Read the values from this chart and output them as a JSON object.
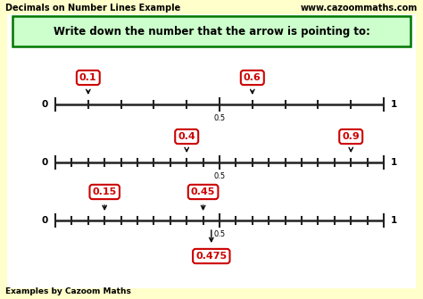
{
  "bg_color": "#ffffcc",
  "inner_bg": "#ffffff",
  "title_left": "Decimals on Number Lines Example",
  "title_right": "www.cazoommaths.com",
  "instruction": "Write down the number that the arrow is pointing to:",
  "footer": "Examples by Cazoom Maths",
  "number_lines": [
    {
      "n_ticks": 10,
      "arrows": [
        {
          "value": 0.1,
          "label": "0.1",
          "above": true
        },
        {
          "value": 0.6,
          "label": "0.6",
          "above": true
        }
      ]
    },
    {
      "n_ticks": 20,
      "arrows": [
        {
          "value": 0.4,
          "label": "0.4",
          "above": true
        },
        {
          "value": 0.9,
          "label": "0.9",
          "above": true
        }
      ]
    },
    {
      "n_ticks": 20,
      "arrows": [
        {
          "value": 0.15,
          "label": "0.15",
          "above": true
        },
        {
          "value": 0.45,
          "label": "0.45",
          "above": true
        },
        {
          "value": 0.475,
          "label": "0.475",
          "above": false
        }
      ]
    }
  ],
  "instruction_box_color": "#ccffcc",
  "instruction_box_edge": "#007700",
  "label_box_color": "white",
  "label_box_edge": "#cc0000",
  "label_text_color": "#cc0000",
  "axis_color": "#222222",
  "tick_color": "#222222",
  "title_fontsize": 7.0,
  "instruction_fontsize": 8.5,
  "label_fontsize": 8.0,
  "axis_label_fontsize": 7.5,
  "footer_fontsize": 6.5
}
